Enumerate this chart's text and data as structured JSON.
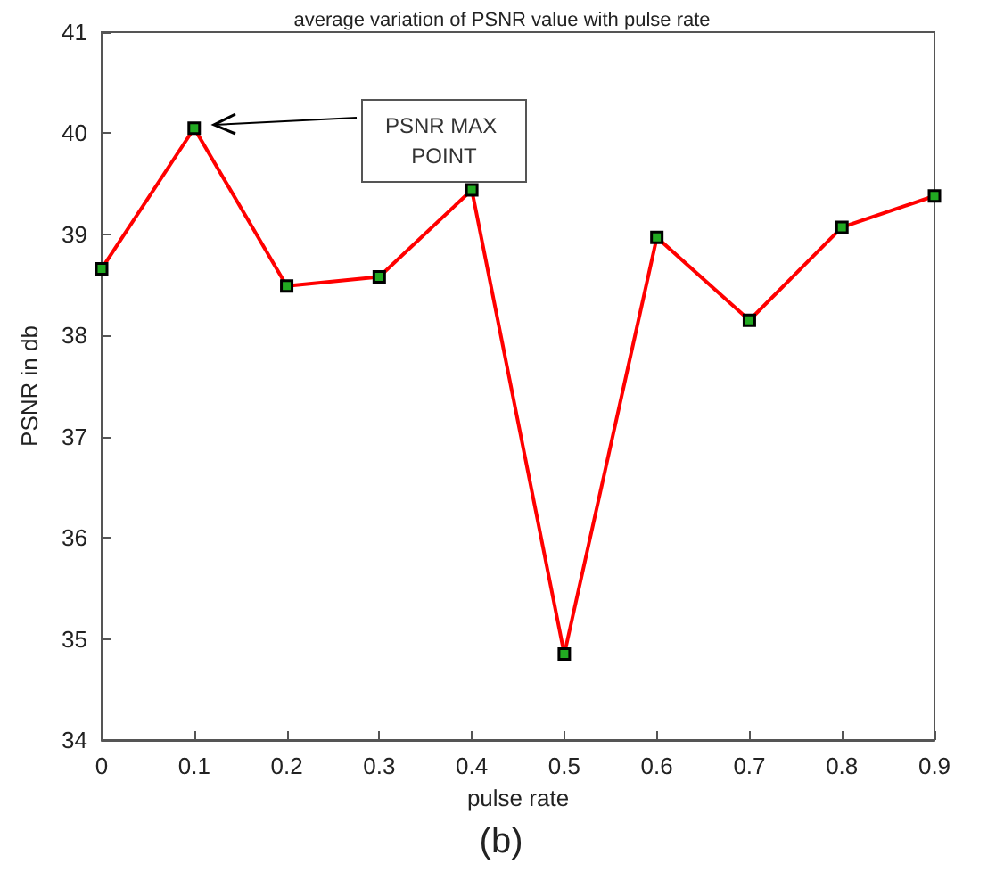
{
  "chart_data": {
    "type": "line",
    "title": "average variation of PSNR value with pulse rate",
    "xlabel": "pulse rate",
    "ylabel": "PSNR in db",
    "x": [
      0,
      0.1,
      0.2,
      0.3,
      0.4,
      0.5,
      0.6,
      0.7,
      0.8,
      0.9
    ],
    "series": [
      {
        "color": "#ff0000",
        "values": [
          38.66,
          40.05,
          38.49,
          38.58,
          39.44,
          34.85,
          38.97,
          38.15,
          39.07,
          39.38
        ]
      }
    ],
    "xlim": [
      0,
      0.9
    ],
    "xticks": [
      0,
      0.1,
      0.2,
      0.3,
      0.4,
      0.5,
      0.6,
      0.7,
      0.8,
      0.9
    ],
    "ylim": [
      34,
      41
    ],
    "yticks": [
      34,
      35,
      36,
      37,
      38,
      39,
      40,
      41
    ],
    "grid": false,
    "marker": "square",
    "line_style": "solid",
    "annotations": [
      "PSNR MAX POINT",
      "(b)"
    ]
  }
}
